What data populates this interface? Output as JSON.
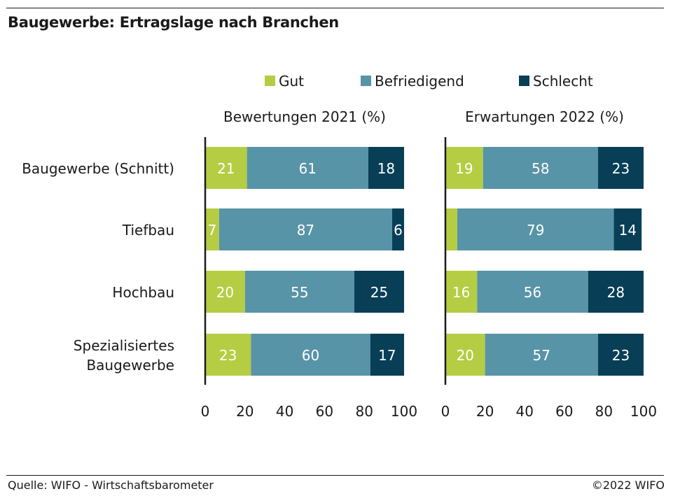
{
  "title": "Baugewerbe: Ertragslage nach Branchen",
  "footer": {
    "source": "Quelle: WIFO - Wirtschaftsbarometer",
    "copyright": "©2022 WIFO"
  },
  "colors": {
    "Gut": "#b4cd43",
    "Befriedigend": "#5894a8",
    "Schlecht": "#083f57"
  },
  "chart_data": {
    "type": "bar",
    "orientation": "horizontal",
    "stacked": true,
    "legend": [
      "Gut",
      "Befriedigend",
      "Schlecht"
    ],
    "legend_placement": "top",
    "categories": [
      [
        "Baugewerbe (Schnitt)"
      ],
      [
        "Tiefbau"
      ],
      [
        "Hochbau"
      ],
      [
        "Spezialisiertes",
        "Baugewerbe"
      ]
    ],
    "xlim": [
      0,
      100
    ],
    "xticks": [
      0,
      20,
      40,
      60,
      80,
      100
    ],
    "grid": false,
    "panels": [
      {
        "title": "Bewertungen 2021 (%)",
        "series": [
          {
            "name": "Gut",
            "values": [
              21,
              7,
              20,
              23
            ],
            "labels": [
              "21",
              "7",
              "20",
              "23"
            ]
          },
          {
            "name": "Befriedigend",
            "values": [
              61,
              87,
              55,
              60
            ],
            "labels": [
              "61",
              "87",
              "55",
              "60"
            ]
          },
          {
            "name": "Schlecht",
            "values": [
              18,
              6,
              25,
              17
            ],
            "labels": [
              "18",
              "6",
              "25",
              "17"
            ]
          }
        ]
      },
      {
        "title": "Erwartungen 2022 (%)",
        "series": [
          {
            "name": "Gut",
            "values": [
              19,
              6,
              16,
              20
            ],
            "labels": [
              "19",
              "",
              "16",
              "20"
            ]
          },
          {
            "name": "Befriedigend",
            "values": [
              58,
              79,
              56,
              57
            ],
            "labels": [
              "58",
              "79",
              "56",
              "57"
            ]
          },
          {
            "name": "Schlecht",
            "values": [
              23,
              14,
              28,
              23
            ],
            "labels": [
              "23",
              "14",
              "28",
              "23"
            ]
          }
        ]
      }
    ]
  }
}
